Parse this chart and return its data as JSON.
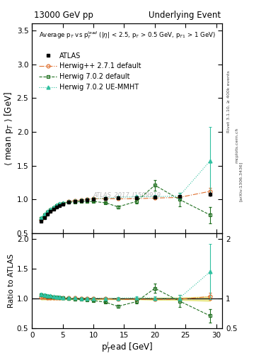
{
  "title_left": "13000 GeV pp",
  "title_right": "Underlying Event",
  "right_label_top": "Rivet 3.1.10, ≥ 400k events",
  "arxiv_label": "[arXiv:1306.3436]",
  "mcplots_label": "mcplots.cern.ch",
  "annotation": "ATLAS_2017_I1509919",
  "xlabel": "p$_{T}^{l}$ead [GeV]",
  "ylabel": "⟨ mean p$_{T}$ ⟩ [GeV]",
  "ylabel_ratio": "Ratio to ATLAS",
  "inner_title": "Average p$_{T}$ vs p$_{T}^{lead}$ (|$\\eta$| < 2.5, p$_{T}$ > 0.5 GeV, p$_{T1}$ > 1 GeV)",
  "ylim_main": [
    0.5,
    3.6
  ],
  "ylim_ratio": [
    0.5,
    2.1
  ],
  "xlim": [
    0,
    31
  ],
  "yticks_main": [
    0.5,
    1.0,
    1.5,
    2.0,
    2.5,
    3.0,
    3.5
  ],
  "yticks_ratio": [
    0.5,
    1.0,
    1.5,
    2.0
  ],
  "xticks": [
    0,
    5,
    10,
    15,
    20,
    25,
    30
  ],
  "atlas_x": [
    1.5,
    2.0,
    2.5,
    3.0,
    3.5,
    4.0,
    4.5,
    5.0,
    6.0,
    7.0,
    8.0,
    9.0,
    10.0,
    12.0,
    14.0,
    17.0,
    20.0,
    24.0,
    29.0
  ],
  "atlas_y": [
    0.68,
    0.73,
    0.78,
    0.82,
    0.86,
    0.89,
    0.91,
    0.93,
    0.96,
    0.97,
    0.98,
    0.99,
    1.0,
    1.01,
    1.02,
    1.02,
    1.03,
    1.04,
    1.08
  ],
  "atlas_yerr": [
    0.01,
    0.01,
    0.01,
    0.01,
    0.01,
    0.01,
    0.01,
    0.01,
    0.01,
    0.01,
    0.01,
    0.01,
    0.01,
    0.01,
    0.01,
    0.01,
    0.02,
    0.02,
    0.04
  ],
  "atlas_color": "#000000",
  "herwig271_x": [
    1.5,
    2.0,
    2.5,
    3.0,
    3.5,
    4.0,
    4.5,
    5.0,
    6.0,
    7.0,
    8.0,
    9.0,
    10.0,
    12.0,
    14.0,
    17.0,
    20.0,
    24.0,
    29.0
  ],
  "herwig271_y": [
    0.7,
    0.75,
    0.79,
    0.83,
    0.87,
    0.9,
    0.92,
    0.94,
    0.97,
    0.98,
    0.99,
    1.0,
    1.01,
    1.01,
    1.01,
    1.01,
    1.02,
    1.03,
    1.12
  ],
  "herwig271_yerr": [
    0.01,
    0.01,
    0.01,
    0.01,
    0.01,
    0.01,
    0.01,
    0.01,
    0.01,
    0.01,
    0.01,
    0.01,
    0.01,
    0.01,
    0.01,
    0.01,
    0.02,
    0.02,
    0.05
  ],
  "herwig271_color": "#e07030",
  "herwig702d_x": [
    1.5,
    2.0,
    2.5,
    3.0,
    3.5,
    4.0,
    4.5,
    5.0,
    6.0,
    7.0,
    8.0,
    9.0,
    10.0,
    12.0,
    14.0,
    17.0,
    20.0,
    24.0,
    29.0
  ],
  "herwig702d_y": [
    0.72,
    0.77,
    0.81,
    0.85,
    0.88,
    0.91,
    0.93,
    0.94,
    0.96,
    0.96,
    0.97,
    0.97,
    0.97,
    0.95,
    0.89,
    0.97,
    1.21,
    1.0,
    0.77
  ],
  "herwig702d_yerr": [
    0.01,
    0.01,
    0.01,
    0.01,
    0.01,
    0.01,
    0.01,
    0.01,
    0.01,
    0.01,
    0.01,
    0.01,
    0.01,
    0.01,
    0.02,
    0.03,
    0.08,
    0.1,
    0.12
  ],
  "herwig702d_color": "#207020",
  "herwig702u_x": [
    1.5,
    2.0,
    2.5,
    3.0,
    3.5,
    4.0,
    4.5,
    5.0,
    6.0,
    7.0,
    8.0,
    9.0,
    10.0,
    12.0,
    14.0,
    17.0,
    20.0,
    24.0,
    29.0
  ],
  "herwig702u_y": [
    0.73,
    0.78,
    0.82,
    0.86,
    0.89,
    0.92,
    0.94,
    0.95,
    0.97,
    0.98,
    0.99,
    1.0,
    1.01,
    1.02,
    1.03,
    1.04,
    1.04,
    1.05,
    1.57
  ],
  "herwig702u_yerr": [
    0.01,
    0.01,
    0.01,
    0.01,
    0.01,
    0.01,
    0.01,
    0.01,
    0.01,
    0.01,
    0.01,
    0.01,
    0.01,
    0.01,
    0.01,
    0.02,
    0.03,
    0.05,
    0.5
  ],
  "herwig702u_color": "#30c0a0",
  "atlas_band_color": "#d8d840",
  "atlas_band_alpha": 0.5,
  "legend_fontsize": 7.0,
  "tick_fontsize": 7.5,
  "label_fontsize": 8.5
}
